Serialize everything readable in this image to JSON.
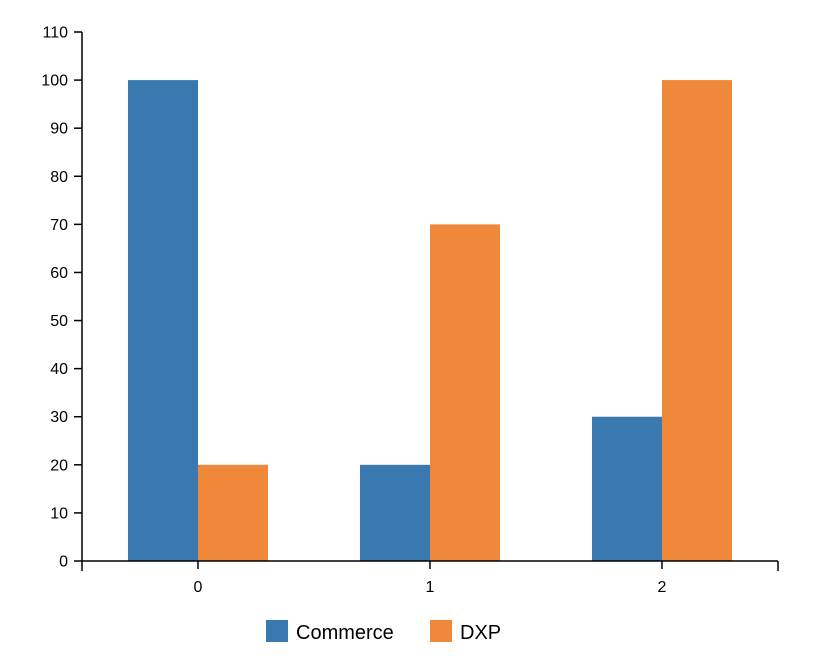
{
  "chart_data": {
    "type": "bar",
    "categories": [
      "0",
      "1",
      "2"
    ],
    "series": [
      {
        "name": "Commerce",
        "values": [
          100,
          20,
          30
        ],
        "color": "#3a78b0"
      },
      {
        "name": "DXP",
        "values": [
          20,
          70,
          100
        ],
        "color": "#f0883a"
      }
    ],
    "ylim": [
      0,
      110
    ],
    "yticks": [
      0,
      10,
      20,
      30,
      40,
      50,
      60,
      70,
      80,
      90,
      100,
      110
    ],
    "grid": false,
    "legend_position": "bottom-center"
  },
  "legend": [
    {
      "label": "Commerce",
      "color": "#3a78b0"
    },
    {
      "label": "DXP",
      "color": "#f0883a"
    }
  ]
}
